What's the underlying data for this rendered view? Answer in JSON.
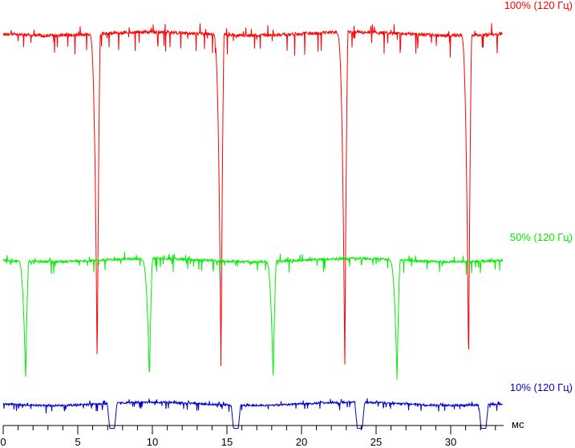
{
  "chart_data": {
    "type": "line",
    "xlabel": "мс",
    "xlim": [
      0,
      33.5
    ],
    "x_ticks": [
      "0",
      "5",
      "10",
      "15",
      "20",
      "25",
      "30"
    ],
    "grid": false,
    "legend": "none",
    "series": [
      {
        "name": "100% (120 Гц)",
        "color": "#ff0000",
        "level_fraction": 1.0,
        "dip_x_ms": [
          6.3,
          14.6,
          22.9,
          31.2
        ],
        "dip_depth_fraction": 0.98
      },
      {
        "name": "50% (120 Гц)",
        "color": "#00ee00",
        "level_fraction": 0.5,
        "dip_x_ms": [
          1.5,
          9.8,
          18.1,
          26.4
        ],
        "dip_depth_fraction": 0.96
      },
      {
        "name": "10% (120 Гц)",
        "color": "#0000cc",
        "level_fraction": 0.1,
        "dip_x_ms": [
          7.3,
          15.6,
          23.9,
          32.2
        ],
        "dip_depth_fraction": 0.9
      }
    ]
  }
}
